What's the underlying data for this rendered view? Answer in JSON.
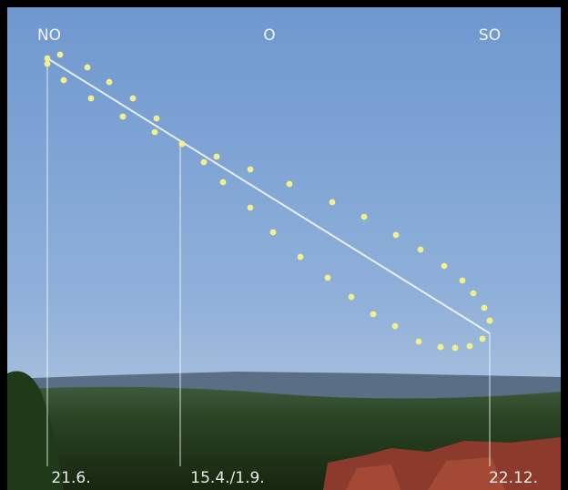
{
  "directions": {
    "northeast": "NO",
    "east": "O",
    "southeast": "SO"
  },
  "dates": {
    "summer_solstice": "21.6.",
    "equinox_period": "15.4./1.9.",
    "winter_solstice": "22.12."
  }
}
